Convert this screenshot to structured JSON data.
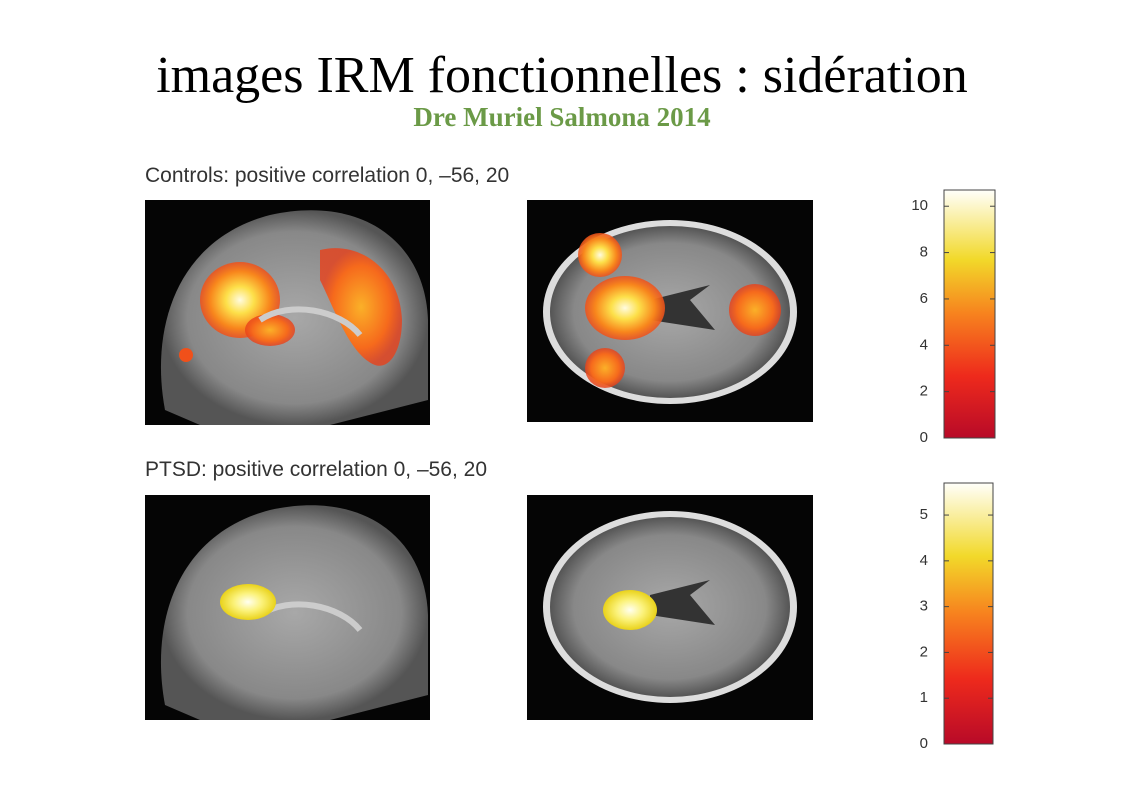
{
  "header": {
    "title": "images IRM fonctionnelles : sidération",
    "subtitle": "Dre Muriel Salmona 2014"
  },
  "panels": [
    {
      "label": "Controls: positive correlation 0, –56, 20",
      "colorbar": {
        "lim": [
          0,
          10.7
        ],
        "ticks": [
          0,
          2,
          4,
          6,
          8,
          10
        ]
      }
    },
    {
      "label": "PTSD: positive correlation 0, –56, 20",
      "colorbar": {
        "lim": [
          0,
          5.7
        ],
        "ticks": [
          0,
          1,
          2,
          3,
          4,
          5
        ]
      }
    }
  ]
}
